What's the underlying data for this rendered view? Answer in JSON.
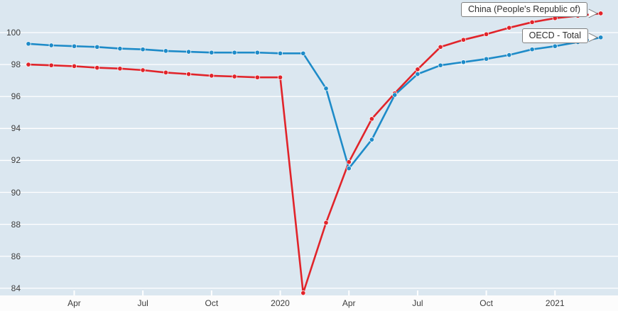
{
  "chart_data": {
    "type": "line",
    "title": "",
    "xlabel": "",
    "ylabel": "",
    "categories": [
      "Feb 2019",
      "Mar 2019",
      "Apr 2019",
      "May 2019",
      "Jun 2019",
      "Jul 2019",
      "Aug 2019",
      "Sep 2019",
      "Oct 2019",
      "Nov 2019",
      "Dec 2019",
      "Jan 2020",
      "Feb 2020",
      "Mar 2020",
      "Apr 2020",
      "May 2020",
      "Jun 2020",
      "Jul 2020",
      "Aug 2020",
      "Sep 2020",
      "Oct 2020",
      "Nov 2020",
      "Dec 2020",
      "Jan 2021",
      "Feb 2021",
      "Mar 2021"
    ],
    "x_tick_labels": [
      {
        "index": 2,
        "label": "Apr"
      },
      {
        "index": 5,
        "label": "Jul"
      },
      {
        "index": 8,
        "label": "Oct"
      },
      {
        "index": 11,
        "label": "2020"
      },
      {
        "index": 14,
        "label": "Apr"
      },
      {
        "index": 17,
        "label": "Jul"
      },
      {
        "index": 20,
        "label": "Oct"
      },
      {
        "index": 23,
        "label": "2021"
      }
    ],
    "y_ticks": [
      84,
      86,
      88,
      90,
      92,
      94,
      96,
      98,
      100
    ],
    "ylim": [
      83.55,
      102.04
    ],
    "grid": "horizontal white lines, light blue plot background, legend as end-of-line callout labels",
    "series": [
      {
        "name": "China (People's Republic of)",
        "color": "#e1242a",
        "values": [
          98.0,
          97.95,
          97.9,
          97.8,
          97.75,
          97.65,
          97.5,
          97.4,
          97.3,
          97.25,
          97.2,
          97.2,
          83.7,
          88.1,
          91.9,
          94.6,
          96.2,
          97.7,
          99.1,
          99.55,
          99.9,
          100.3,
          100.65,
          100.9,
          101.05,
          101.2
        ]
      },
      {
        "name": "OECD - Total",
        "color": "#1e8bc8",
        "values": [
          99.3,
          99.2,
          99.15,
          99.1,
          99.0,
          98.95,
          98.85,
          98.8,
          98.75,
          98.75,
          98.75,
          98.7,
          98.7,
          96.5,
          91.5,
          93.3,
          96.1,
          97.4,
          97.95,
          98.15,
          98.35,
          98.6,
          98.95,
          99.15,
          99.4,
          99.7
        ]
      }
    ],
    "colors": {
      "plot_background": "#dbe7f0",
      "axis_strip_background": "#fcfcfc",
      "gridline": "#ffffff",
      "tick_mark": "#ffffff",
      "axis_label_text": "#3d3d3d",
      "callout_border": "#7f7f7f",
      "callout_background": "#ffffff"
    }
  }
}
